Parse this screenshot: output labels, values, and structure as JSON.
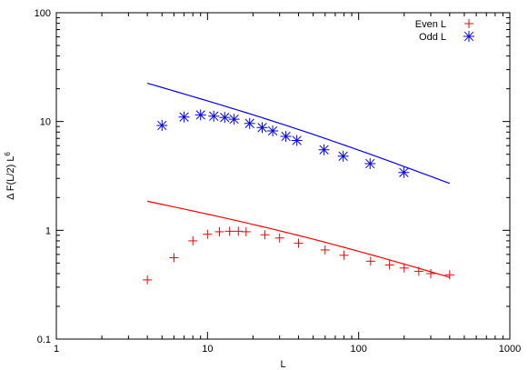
{
  "chart_data": {
    "type": "scatter",
    "xscale": "log",
    "yscale": "log",
    "xlim": [
      1,
      1000
    ],
    "ylim": [
      0.1,
      100
    ],
    "xlabel": "L",
    "ylabel": "Δ F(L/2) L",
    "ylabel_sup": "6",
    "x_ticks": [
      1,
      10,
      100,
      1000
    ],
    "x_tick_labels": [
      "1",
      "10",
      "100",
      "1000"
    ],
    "y_ticks": [
      0.1,
      1,
      10,
      100
    ],
    "y_tick_labels": [
      "0.1",
      "1",
      "10",
      "100"
    ],
    "grid": false,
    "legend_position": "top-right",
    "series": [
      {
        "name": "Even L",
        "marker": "plus",
        "color": "#ff0000",
        "x": [
          4,
          6,
          8,
          10,
          12,
          14,
          16,
          18,
          24,
          30,
          40,
          60,
          80,
          120,
          160,
          200,
          250,
          300,
          400
        ],
        "y": [
          0.35,
          0.56,
          0.8,
          0.92,
          0.97,
          0.98,
          0.98,
          0.97,
          0.91,
          0.85,
          0.76,
          0.66,
          0.59,
          0.52,
          0.48,
          0.45,
          0.42,
          0.4,
          0.39
        ]
      },
      {
        "name": "Odd L",
        "marker": "star",
        "color": "#0000ff",
        "x": [
          5,
          7,
          9,
          11,
          13,
          15,
          19,
          23,
          27,
          33,
          39,
          59,
          79,
          119,
          199
        ],
        "y": [
          9.2,
          11.0,
          11.5,
          11.2,
          10.9,
          10.5,
          9.6,
          8.8,
          8.2,
          7.3,
          6.7,
          5.5,
          4.8,
          4.1,
          3.4
        ]
      }
    ],
    "fit_lines": [
      {
        "color": "#ff0000",
        "x": [
          4,
          400
        ],
        "y": [
          1.85,
          0.37
        ]
      },
      {
        "color": "#0000ff",
        "x": [
          4,
          400
        ],
        "y": [
          22.5,
          2.7
        ]
      }
    ]
  }
}
